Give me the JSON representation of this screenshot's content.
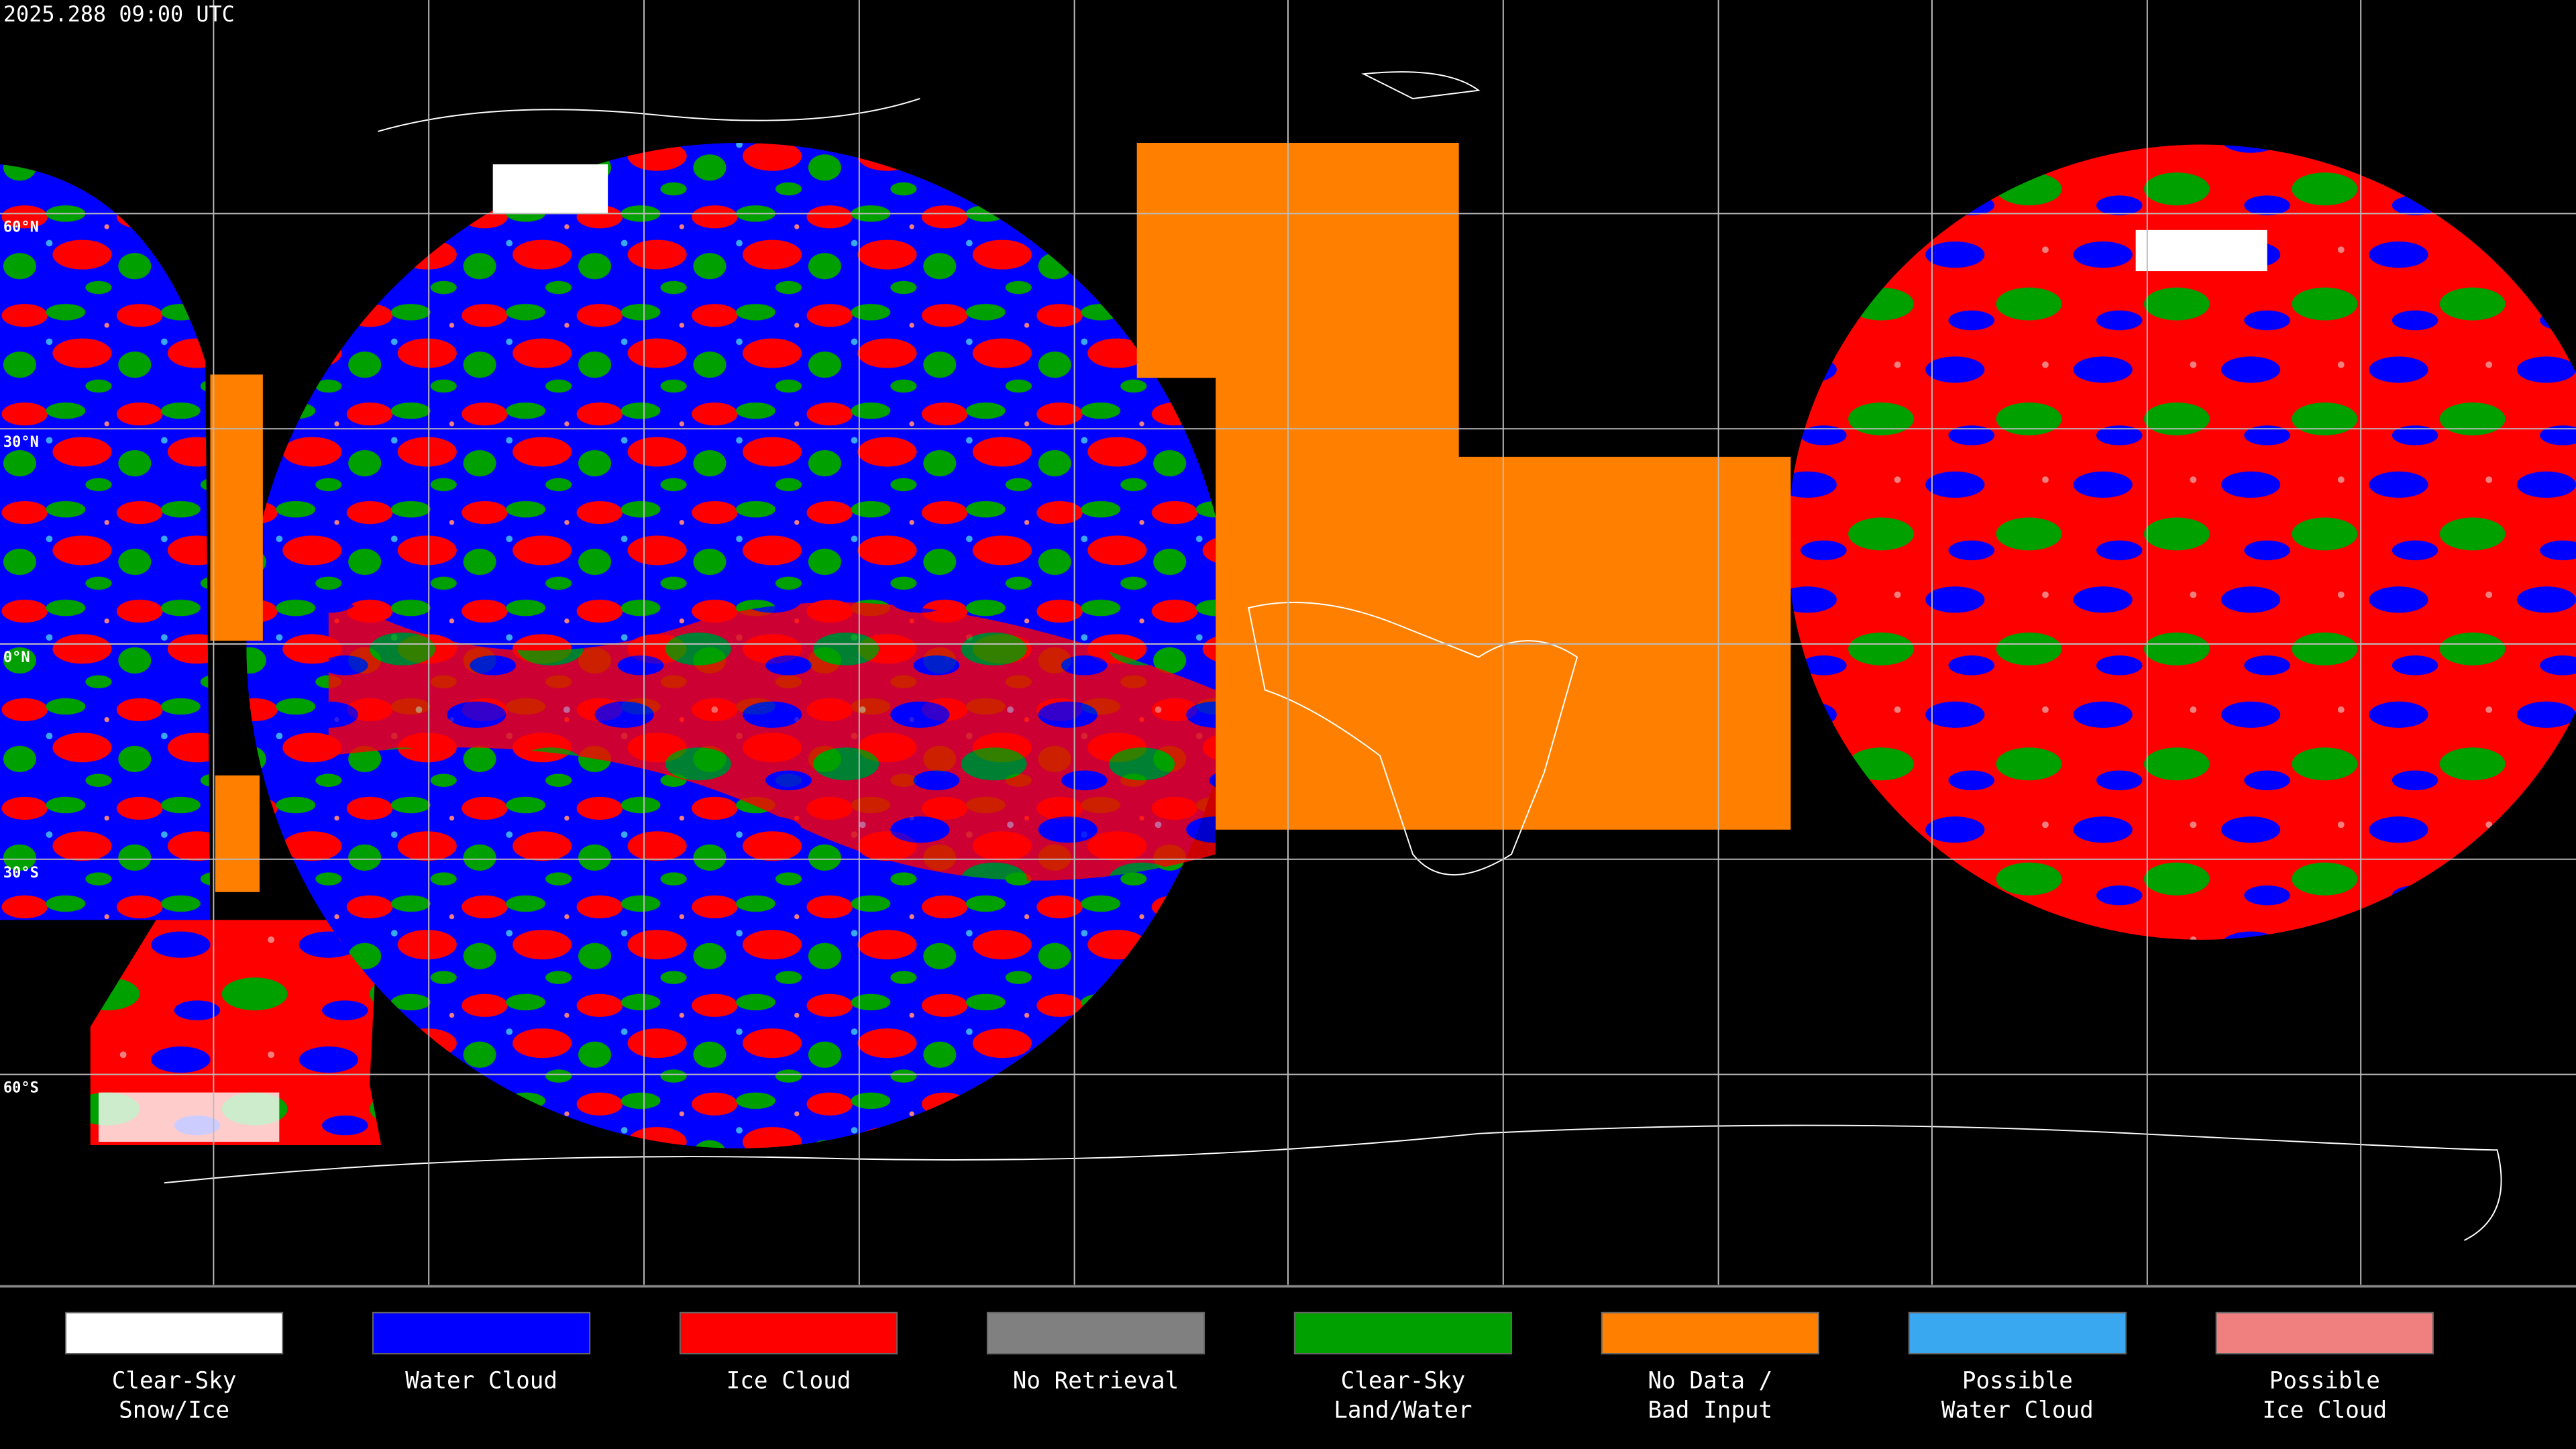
{
  "header": {
    "timestamp": "2025.288 09:00 UTC"
  },
  "map": {
    "latitude_labels": [
      "60°N",
      "30°N",
      "0°N",
      "30°S",
      "60°S"
    ]
  },
  "legend": {
    "items": [
      {
        "label_lines": [
          "Clear-Sky",
          "Snow/Ice"
        ],
        "color": "#ffffff"
      },
      {
        "label_lines": [
          "Water Cloud"
        ],
        "color": "#0000ff"
      },
      {
        "label_lines": [
          "Ice Cloud"
        ],
        "color": "#ff0000"
      },
      {
        "label_lines": [
          "No Retrieval"
        ],
        "color": "#808080"
      },
      {
        "label_lines": [
          "Clear-Sky",
          "Land/Water"
        ],
        "color": "#00a000"
      },
      {
        "label_lines": [
          "No Data /",
          "Bad Input"
        ],
        "color": "#ff8000"
      },
      {
        "label_lines": [
          "Possible",
          "Water Cloud"
        ],
        "color": "#3aa8f0"
      },
      {
        "label_lines": [
          "Possible",
          "Ice Cloud"
        ],
        "color": "#f08080"
      }
    ]
  }
}
